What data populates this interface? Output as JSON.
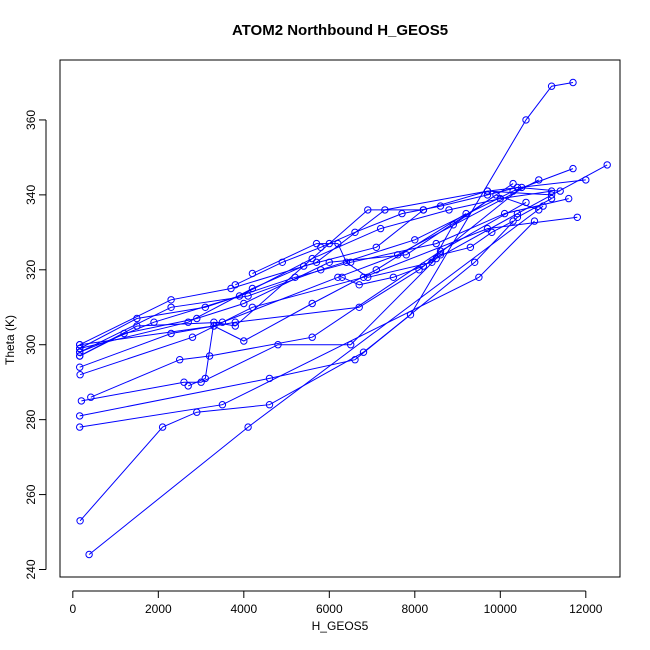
{
  "chart_data": {
    "type": "scatter",
    "title": "ATOM2 Northbound H_GEOS5",
    "xlabel": "H_GEOS5",
    "ylabel": "Theta (K)",
    "xlim": [
      -300,
      12800
    ],
    "ylim": [
      238,
      376
    ],
    "x_ticks": [
      0,
      2000,
      4000,
      6000,
      8000,
      10000,
      12000
    ],
    "y_ticks": [
      240,
      260,
      280,
      300,
      320,
      340,
      360
    ],
    "grid": false,
    "legend": "none",
    "marker": "open-circle",
    "line_connect": true,
    "series_color": "#0000ff",
    "points": [
      [
        380,
        244
      ],
      [
        4100,
        278
      ],
      [
        11000,
        337
      ],
      [
        170,
        253
      ],
      [
        2100,
        278
      ],
      [
        2900,
        282
      ],
      [
        4600,
        284
      ],
      [
        6800,
        298
      ],
      [
        7900,
        308
      ],
      [
        10600,
        360
      ],
      [
        11200,
        369
      ],
      [
        11700,
        370
      ],
      [
        160,
        278
      ],
      [
        3500,
        284
      ],
      [
        9500,
        318
      ],
      [
        10800,
        333
      ],
      [
        160,
        281
      ],
      [
        4600,
        291
      ],
      [
        6600,
        296
      ],
      [
        9400,
        322
      ],
      [
        10400,
        334
      ],
      [
        11200,
        339
      ],
      [
        200,
        285
      ],
      [
        2600,
        290
      ],
      [
        3000,
        290
      ],
      [
        4800,
        300
      ],
      [
        6500,
        300
      ],
      [
        8500,
        323
      ],
      [
        10400,
        335
      ],
      [
        12500,
        348
      ],
      [
        420,
        286
      ],
      [
        2500,
        296
      ],
      [
        3200,
        297
      ],
      [
        5600,
        302
      ],
      [
        8600,
        325
      ],
      [
        10600,
        338
      ],
      [
        170,
        292
      ],
      [
        2800,
        302
      ],
      [
        4200,
        310
      ],
      [
        6800,
        318
      ],
      [
        9700,
        331
      ],
      [
        11800,
        334
      ],
      [
        160,
        294
      ],
      [
        2300,
        303
      ],
      [
        3800,
        306
      ],
      [
        6700,
        310
      ],
      [
        8100,
        320
      ],
      [
        10500,
        342
      ],
      [
        160,
        297
      ],
      [
        1500,
        305
      ],
      [
        3500,
        306
      ],
      [
        6200,
        318
      ],
      [
        7600,
        324
      ],
      [
        10900,
        344
      ],
      [
        160,
        298
      ],
      [
        2300,
        310
      ],
      [
        4100,
        313
      ],
      [
        5800,
        320
      ],
      [
        8000,
        328
      ],
      [
        10300,
        341
      ],
      [
        11700,
        347
      ],
      [
        160,
        299
      ],
      [
        1500,
        307
      ],
      [
        3100,
        310
      ],
      [
        5200,
        318
      ],
      [
        6500,
        322
      ],
      [
        8500,
        327
      ],
      [
        10100,
        335
      ],
      [
        11600,
        339
      ],
      [
        160,
        300
      ],
      [
        2300,
        312
      ],
      [
        3700,
        315
      ],
      [
        5700,
        322
      ],
      [
        7300,
        336
      ],
      [
        9700,
        341
      ],
      [
        12000,
        344
      ],
      [
        160,
        297
      ],
      [
        1200,
        303
      ],
      [
        2900,
        307
      ],
      [
        4000,
        311
      ],
      [
        6000,
        322
      ],
      [
        7800,
        324
      ],
      [
        10300,
        343
      ],
      [
        160,
        298
      ],
      [
        1900,
        306
      ],
      [
        3900,
        313
      ],
      [
        5600,
        323
      ],
      [
        7200,
        331
      ],
      [
        8800,
        336
      ],
      [
        10000,
        339
      ],
      [
        11200,
        341
      ],
      [
        160,
        299
      ],
      [
        2700,
        306
      ],
      [
        4200,
        315
      ],
      [
        5400,
        321
      ],
      [
        7100,
        326
      ],
      [
        8200,
        336
      ],
      [
        9700,
        341
      ],
      [
        11200,
        340
      ],
      [
        160,
        300
      ],
      [
        3300,
        305
      ],
      [
        4000,
        301
      ],
      [
        5600,
        311
      ],
      [
        7100,
        320
      ],
      [
        9200,
        335
      ],
      [
        3800,
        316
      ],
      [
        4900,
        322
      ],
      [
        5800,
        326
      ],
      [
        6600,
        330
      ],
      [
        7700,
        335
      ],
      [
        8600,
        337
      ],
      [
        9700,
        340
      ],
      [
        10400,
        342
      ],
      [
        11400,
        341
      ],
      [
        2700,
        289
      ],
      [
        3100,
        291
      ],
      [
        3300,
        306
      ],
      [
        3800,
        305
      ],
      [
        6000,
        327
      ],
      [
        6900,
        336
      ],
      [
        8200,
        336
      ],
      [
        4200,
        319
      ],
      [
        5700,
        327
      ],
      [
        6200,
        327
      ],
      [
        6400,
        322
      ],
      [
        6900,
        318
      ],
      [
        8400,
        322
      ],
      [
        8900,
        332
      ],
      [
        9900,
        340
      ],
      [
        10900,
        336
      ],
      [
        6300,
        318
      ],
      [
        6700,
        316
      ],
      [
        7500,
        318
      ],
      [
        8200,
        321
      ],
      [
        8600,
        324
      ],
      [
        9300,
        326
      ],
      [
        9800,
        330
      ],
      [
        10300,
        333
      ]
    ],
    "segments": [
      [
        [
          380,
          244
        ],
        [
          4100,
          278
        ],
        [
          11000,
          337
        ]
      ],
      [
        [
          170,
          253
        ],
        [
          2100,
          278
        ],
        [
          2900,
          282
        ],
        [
          4600,
          284
        ],
        [
          6800,
          298
        ],
        [
          7900,
          308
        ],
        [
          10600,
          360
        ],
        [
          11200,
          369
        ],
        [
          11700,
          370
        ]
      ],
      [
        [
          160,
          278
        ],
        [
          3500,
          284
        ],
        [
          9500,
          318
        ],
        [
          10800,
          333
        ]
      ],
      [
        [
          160,
          281
        ],
        [
          4600,
          291
        ],
        [
          6600,
          296
        ],
        [
          9400,
          322
        ],
        [
          10400,
          334
        ],
        [
          11200,
          339
        ]
      ],
      [
        [
          200,
          285
        ],
        [
          2600,
          290
        ],
        [
          3000,
          290
        ],
        [
          4800,
          300
        ],
        [
          6500,
          300
        ],
        [
          8500,
          323
        ],
        [
          10400,
          335
        ],
        [
          12500,
          348
        ]
      ],
      [
        [
          420,
          286
        ],
        [
          2500,
          296
        ],
        [
          3200,
          297
        ],
        [
          5600,
          302
        ],
        [
          8600,
          325
        ],
        [
          10600,
          338
        ]
      ],
      [
        [
          170,
          292
        ],
        [
          2800,
          302
        ],
        [
          4200,
          310
        ],
        [
          6800,
          318
        ],
        [
          9700,
          331
        ],
        [
          11800,
          334
        ]
      ],
      [
        [
          160,
          294
        ],
        [
          2300,
          303
        ],
        [
          3800,
          306
        ],
        [
          6700,
          310
        ],
        [
          8100,
          320
        ],
        [
          10500,
          342
        ]
      ],
      [
        [
          160,
          297
        ],
        [
          1500,
          305
        ],
        [
          3500,
          306
        ],
        [
          6200,
          318
        ],
        [
          7600,
          324
        ],
        [
          10900,
          344
        ]
      ],
      [
        [
          160,
          298
        ],
        [
          2300,
          310
        ],
        [
          4100,
          313
        ],
        [
          5800,
          320
        ],
        [
          8000,
          328
        ],
        [
          10300,
          341
        ],
        [
          11700,
          347
        ]
      ],
      [
        [
          160,
          299
        ],
        [
          1500,
          307
        ],
        [
          3100,
          310
        ],
        [
          5200,
          318
        ],
        [
          6500,
          322
        ],
        [
          8500,
          327
        ],
        [
          10100,
          335
        ],
        [
          11600,
          339
        ]
      ],
      [
        [
          160,
          300
        ],
        [
          2300,
          312
        ],
        [
          3700,
          315
        ],
        [
          5700,
          322
        ],
        [
          7300,
          336
        ],
        [
          9700,
          341
        ],
        [
          12000,
          344
        ]
      ],
      [
        [
          160,
          297
        ],
        [
          1200,
          303
        ],
        [
          2900,
          307
        ],
        [
          4000,
          311
        ],
        [
          6000,
          322
        ],
        [
          7800,
          324
        ],
        [
          10300,
          343
        ]
      ],
      [
        [
          160,
          298
        ],
        [
          1900,
          306
        ],
        [
          3900,
          313
        ],
        [
          5600,
          323
        ],
        [
          7200,
          331
        ],
        [
          8800,
          336
        ],
        [
          10000,
          339
        ],
        [
          11200,
          341
        ]
      ],
      [
        [
          160,
          299
        ],
        [
          2700,
          306
        ],
        [
          4200,
          315
        ],
        [
          5400,
          321
        ],
        [
          7100,
          326
        ],
        [
          8200,
          336
        ],
        [
          9700,
          341
        ],
        [
          11200,
          340
        ]
      ],
      [
        [
          160,
          300
        ],
        [
          3300,
          305
        ],
        [
          4000,
          301
        ],
        [
          5600,
          311
        ],
        [
          7100,
          320
        ],
        [
          9200,
          335
        ]
      ],
      [
        [
          3800,
          316
        ],
        [
          4900,
          322
        ],
        [
          5800,
          326
        ],
        [
          6600,
          330
        ],
        [
          7700,
          335
        ],
        [
          8600,
          337
        ],
        [
          9700,
          340
        ],
        [
          10400,
          342
        ],
        [
          11400,
          341
        ]
      ],
      [
        [
          2700,
          289
        ],
        [
          3100,
          291
        ],
        [
          3300,
          306
        ],
        [
          3800,
          305
        ],
        [
          6000,
          327
        ],
        [
          6900,
          336
        ],
        [
          8200,
          336
        ]
      ],
      [
        [
          4200,
          319
        ],
        [
          5700,
          327
        ],
        [
          6200,
          327
        ],
        [
          6400,
          322
        ],
        [
          6900,
          318
        ],
        [
          8400,
          322
        ],
        [
          8900,
          332
        ],
        [
          9900,
          340
        ],
        [
          10900,
          336
        ]
      ],
      [
        [
          6300,
          318
        ],
        [
          6700,
          316
        ],
        [
          7500,
          318
        ],
        [
          8200,
          321
        ],
        [
          8600,
          324
        ],
        [
          9300,
          326
        ],
        [
          9800,
          330
        ],
        [
          10300,
          333
        ]
      ]
    ]
  }
}
